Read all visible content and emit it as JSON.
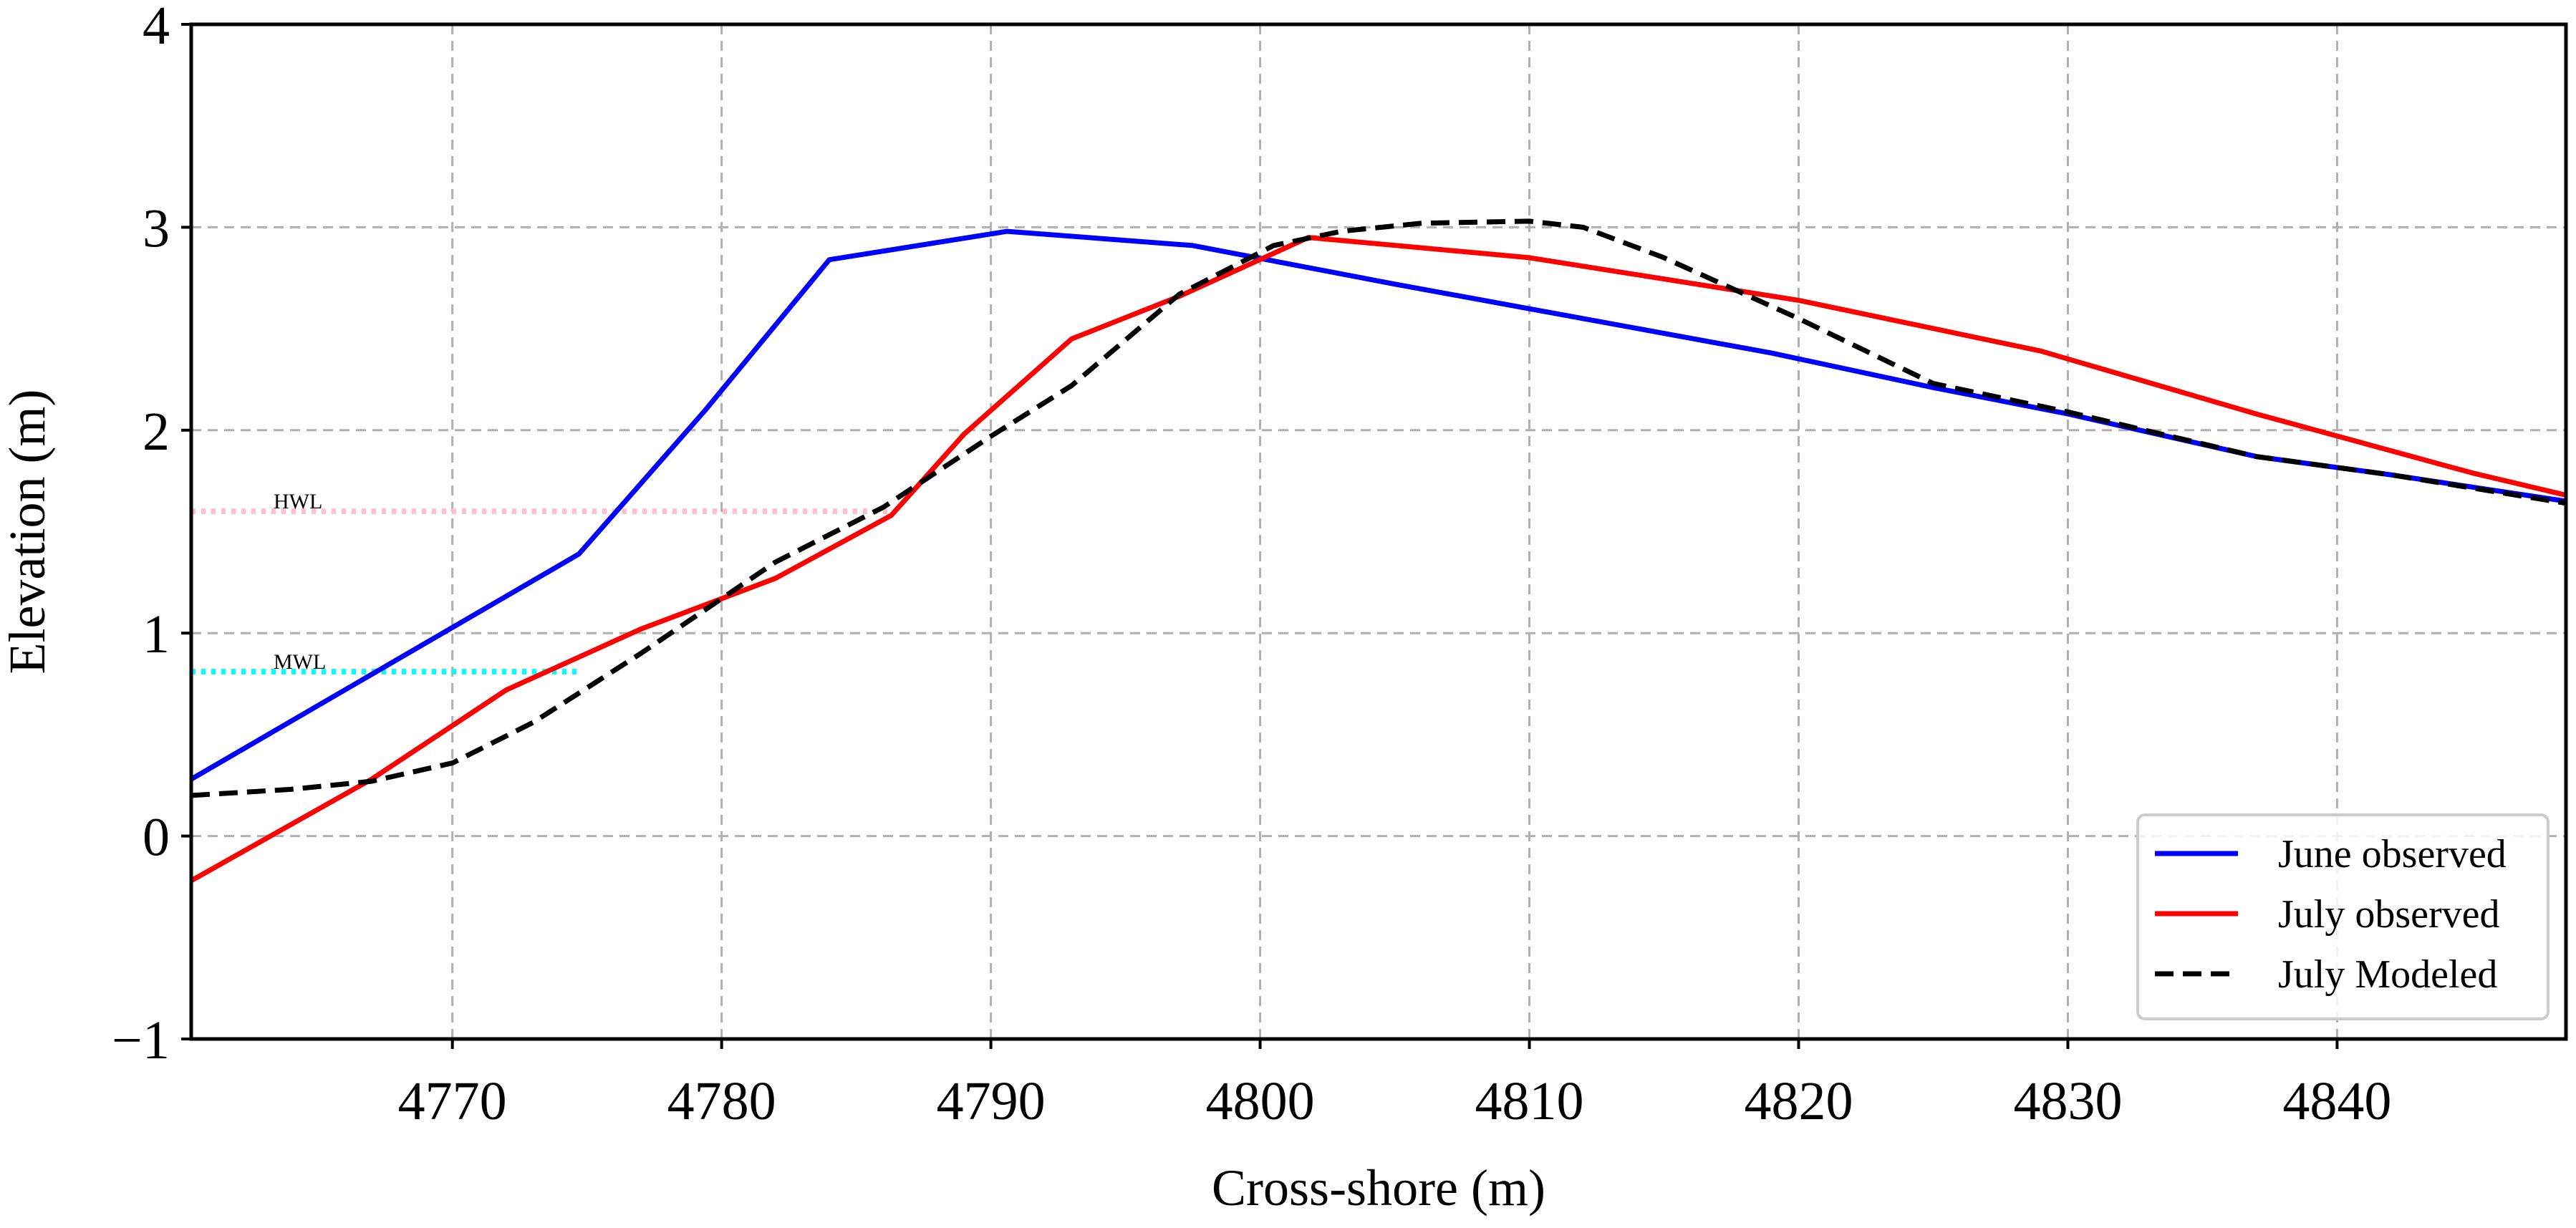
{
  "chart_data": {
    "type": "line",
    "title": "",
    "xlabel": "Cross-shore (m)",
    "ylabel": "Elevation (m)",
    "xlim": [
      4760.3,
      4848.5
    ],
    "ylim": [
      -1,
      4
    ],
    "xticks": [
      4770,
      4780,
      4790,
      4800,
      4810,
      4820,
      4830,
      4840
    ],
    "xtick_labels": [
      "4770",
      "4780",
      "4790",
      "4800",
      "4810",
      "4820",
      "4830",
      "4840"
    ],
    "yticks": [
      -1,
      0,
      1,
      2,
      3,
      4
    ],
    "ytick_labels": [
      "−1",
      "0",
      "1",
      "2",
      "3",
      "4"
    ],
    "grid": true,
    "legend_position": "bottom-right",
    "series": [
      {
        "name": "June observed",
        "color": "#0000ff",
        "style": "solid",
        "x": [
          4760.3,
          4774.7,
          4779.4,
          4784.0,
          4790.6,
          4797.5,
          4805.0,
          4812.0,
          4819.0,
          4825.0,
          4830.0,
          4837.0,
          4842.0,
          4848.5
        ],
        "y": [
          0.28,
          1.39,
          2.1,
          2.84,
          2.98,
          2.91,
          2.72,
          2.55,
          2.38,
          2.21,
          2.08,
          1.87,
          1.78,
          1.65
        ]
      },
      {
        "name": "July observed",
        "color": "#ff0000",
        "style": "solid",
        "x": [
          4760.3,
          4767.0,
          4772.0,
          4777.0,
          4782.0,
          4786.3,
          4789.0,
          4793.0,
          4797.0,
          4801.8,
          4810.0,
          4820.0,
          4829.0,
          4837.0,
          4845.0,
          4848.5
        ],
        "y": [
          -0.22,
          0.28,
          0.72,
          1.02,
          1.27,
          1.58,
          1.98,
          2.45,
          2.66,
          2.95,
          2.85,
          2.64,
          2.39,
          2.08,
          1.79,
          1.68
        ]
      },
      {
        "name": "July Modeled",
        "color": "#000000",
        "style": "dashed",
        "x": [
          4760.3,
          4764.0,
          4767.0,
          4770.0,
          4773.0,
          4777.0,
          4782.0,
          4786.0,
          4790.0,
          4793.0,
          4797.0,
          4800.5,
          4803.0,
          4806.0,
          4810.0,
          4812.0,
          4815.0,
          4820.0,
          4825.0,
          4830.0,
          4837.0,
          4842.0,
          4848.5
        ],
        "y": [
          0.2,
          0.23,
          0.27,
          0.36,
          0.56,
          0.9,
          1.35,
          1.62,
          1.97,
          2.22,
          2.67,
          2.91,
          2.98,
          3.02,
          3.03,
          3.0,
          2.85,
          2.55,
          2.23,
          2.09,
          1.87,
          1.78,
          1.64
        ]
      }
    ],
    "reference_lines": [
      {
        "label": "HWL",
        "y": 1.6,
        "x_start": 4760.3,
        "x_end": 4786.3,
        "color": "#ffc0cb",
        "style": "dotted"
      },
      {
        "label": "MWL",
        "y": 0.81,
        "x_start": 4760.3,
        "x_end": 4774.7,
        "color": "#00ffff",
        "style": "dotted"
      }
    ]
  }
}
